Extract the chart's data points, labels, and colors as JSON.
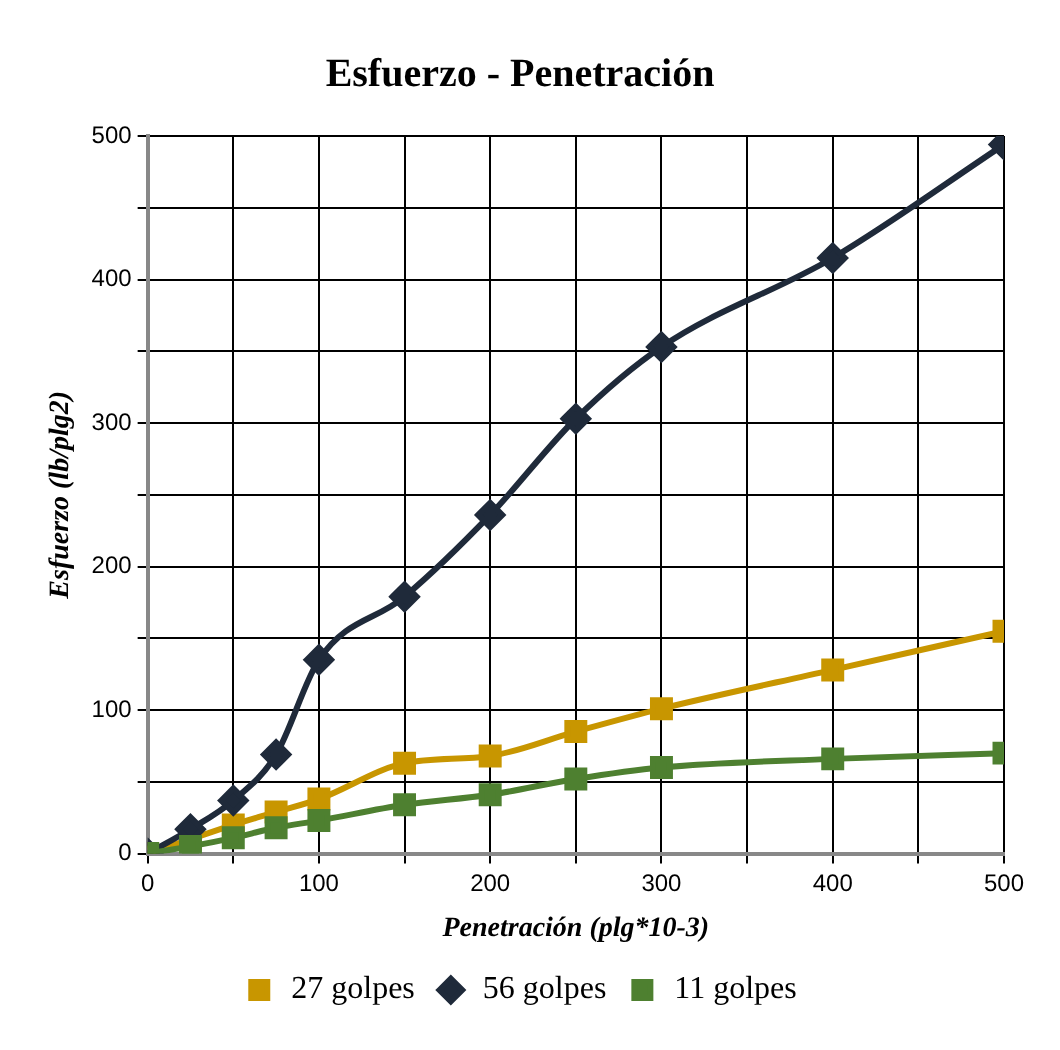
{
  "chart_data": {
    "type": "line",
    "title": "Esfuerzo - Penetración",
    "xlabel": "Penetración (plg*10-3)",
    "ylabel": "Esfuerzo (lb/plg2)",
    "x": [
      0,
      25,
      50,
      75,
      100,
      150,
      200,
      250,
      300,
      400,
      500
    ],
    "series": [
      {
        "name": "27 golpes",
        "color": "#c89600",
        "marker": "square",
        "values": [
          0,
          10,
          20,
          29,
          38,
          63,
          68,
          85,
          101,
          128,
          155
        ]
      },
      {
        "name": "56 golpes",
        "color": "#1f2a3a",
        "marker": "diamond",
        "values": [
          0,
          17,
          37,
          69,
          135,
          179,
          236,
          303,
          353,
          415,
          494
        ]
      },
      {
        "name": "11 golpes",
        "color": "#4e8030",
        "marker": "square",
        "values": [
          0,
          5,
          11,
          18,
          23,
          34,
          41,
          52,
          60,
          66,
          70
        ]
      }
    ],
    "xlim": [
      0,
      500
    ],
    "ylim": [
      0,
      500
    ],
    "xticks": [
      0,
      {
        "value": 50,
        "label": null
      },
      100,
      {
        "value": 150,
        "label": null
      },
      200,
      {
        "value": 250,
        "label": null
      },
      300,
      {
        "value": 350,
        "label": null
      },
      400,
      {
        "value": 450,
        "label": null
      },
      500
    ],
    "yticks": [
      0,
      {
        "value": 50,
        "label": null
      },
      100,
      {
        "value": 150,
        "label": null
      },
      200,
      {
        "value": 250,
        "label": null
      },
      300,
      {
        "value": 350,
        "label": null
      },
      400,
      {
        "value": 450,
        "label": null
      },
      500
    ],
    "grid": true,
    "legend": "bottom",
    "line_style": "solid"
  }
}
